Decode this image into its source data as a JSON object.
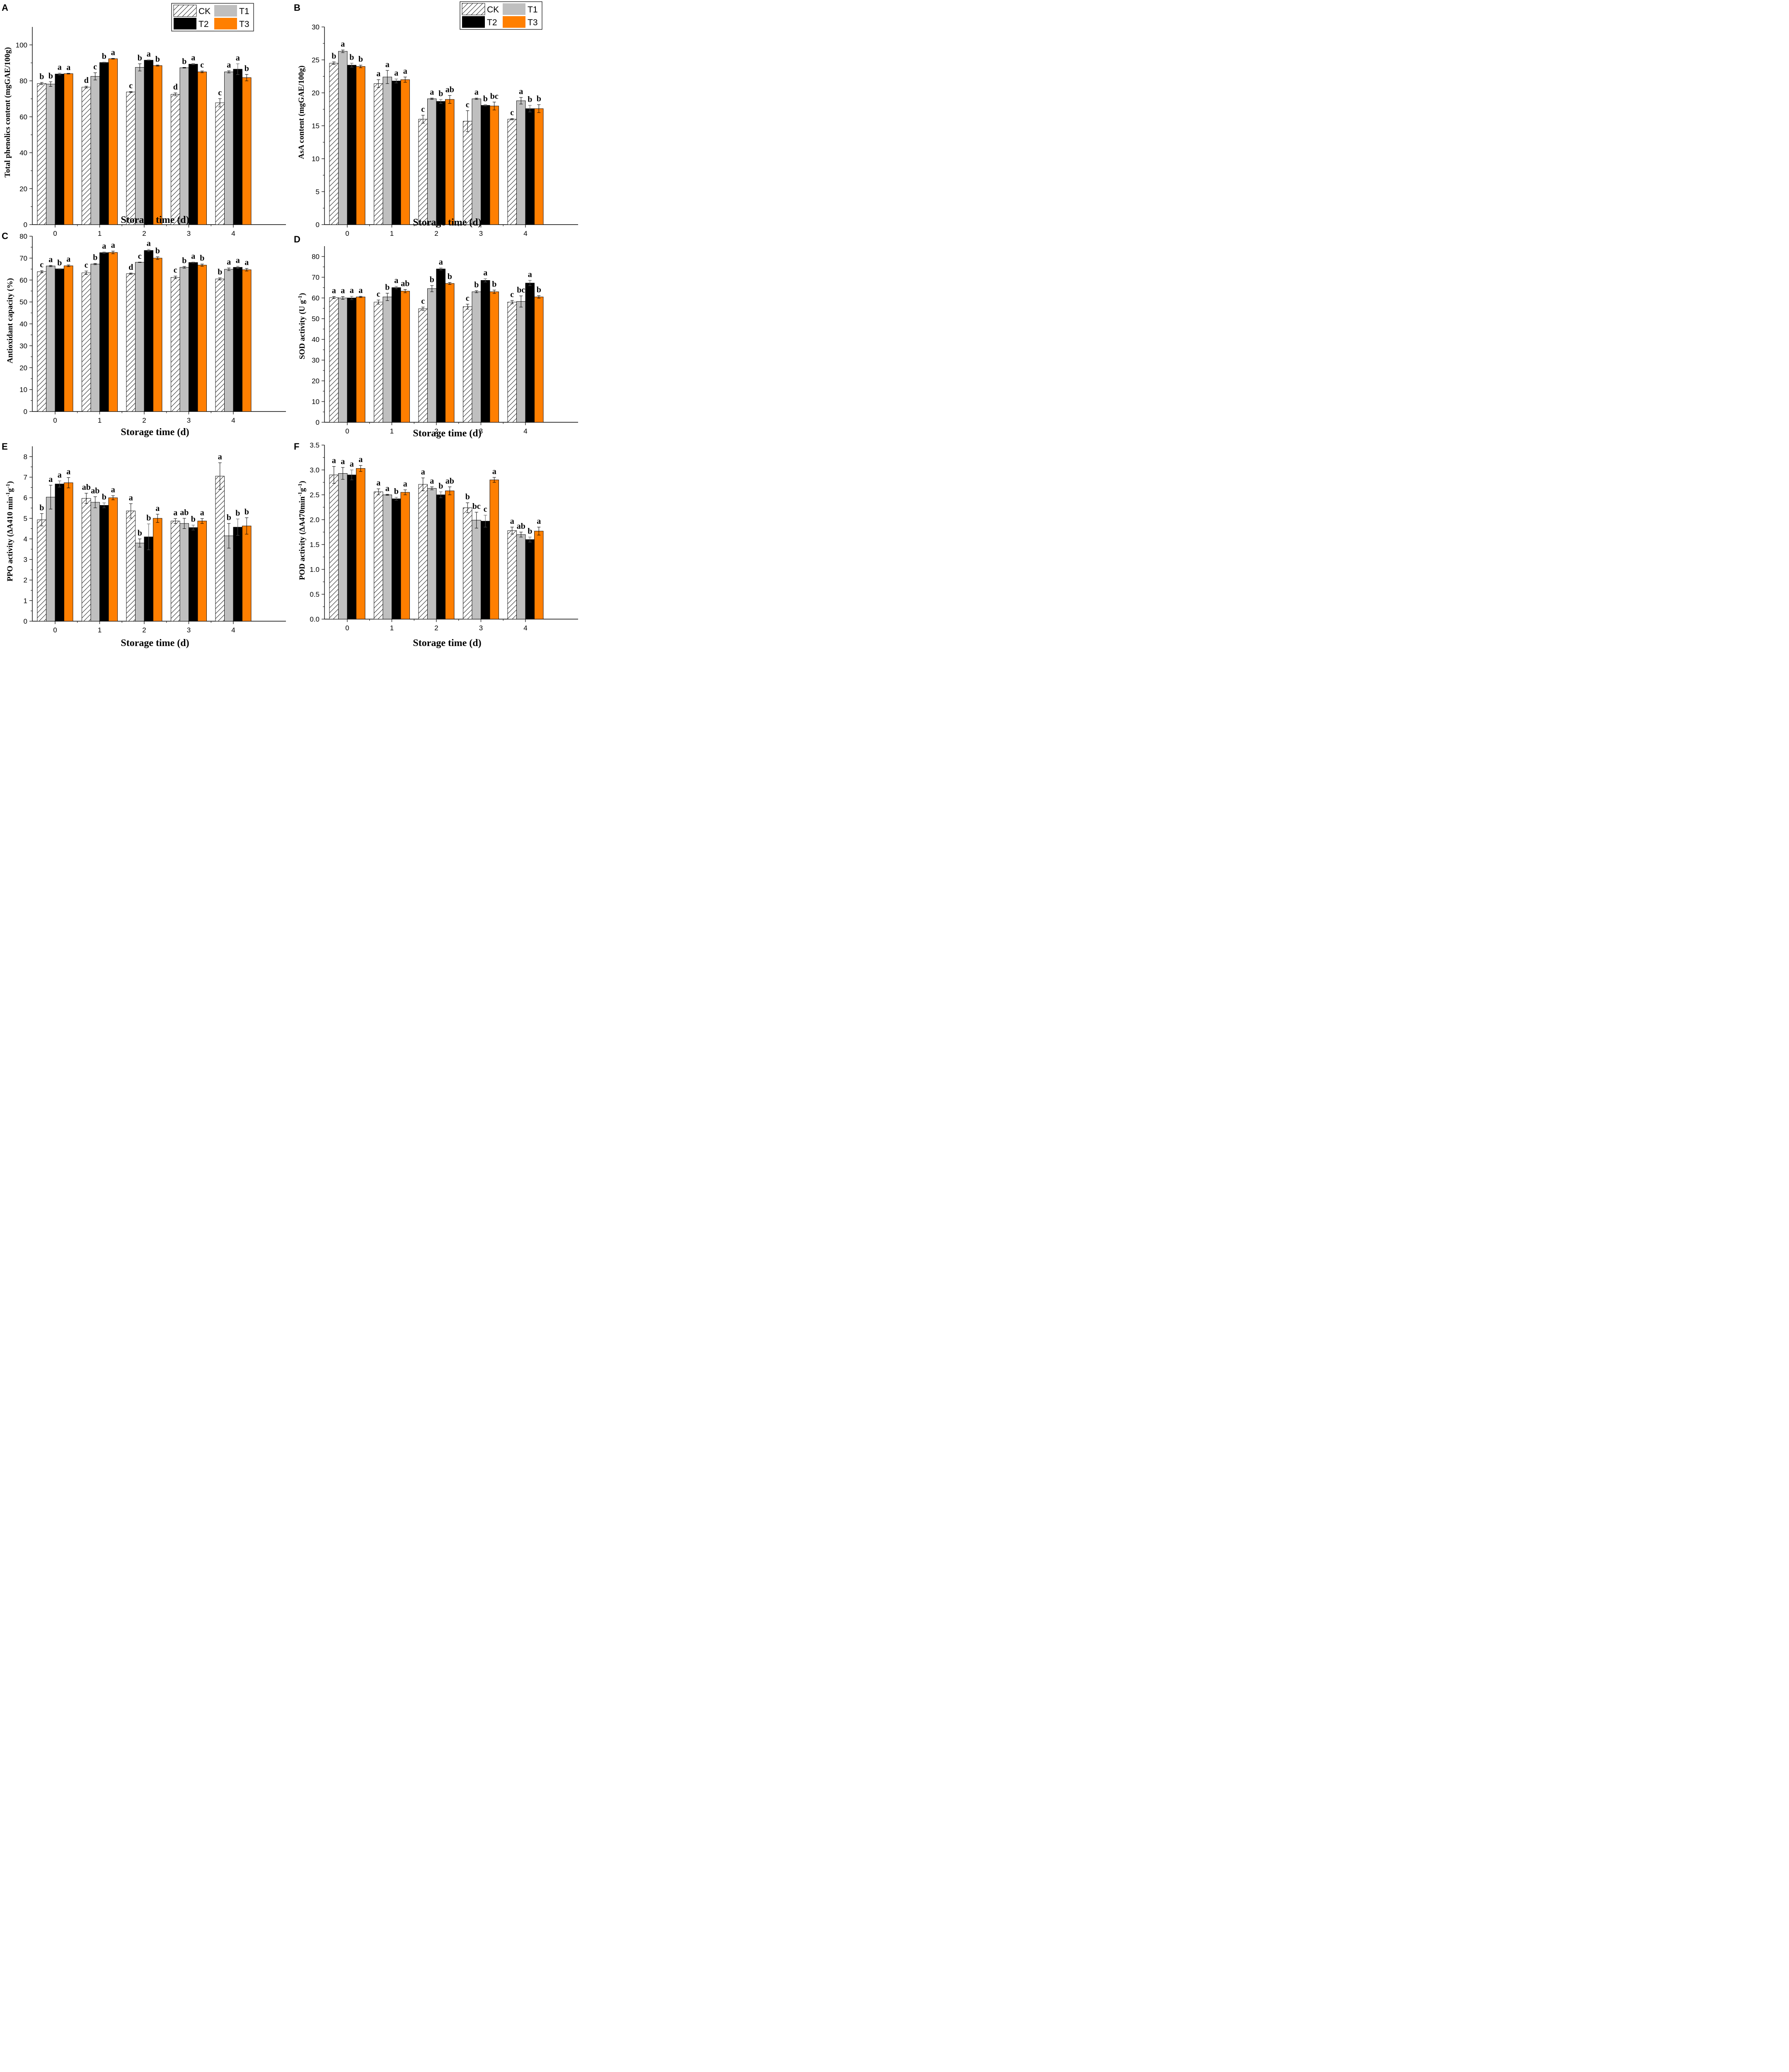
{
  "series_names": [
    "CK",
    "T1",
    "T2",
    "T3"
  ],
  "colors": {
    "CK": "#ffffff",
    "T1": "#bfbfbf",
    "T2": "#000000",
    "T3": "#ff7f00",
    "hatch": "#000000"
  },
  "legend": {
    "labels": [
      "CK",
      "T1",
      "T2",
      "T3"
    ]
  },
  "chart_data": [
    {
      "id": "A",
      "panel_label": "A",
      "type": "bar",
      "categories": [
        "0",
        "1",
        "2",
        "3",
        "4"
      ],
      "xlabel": "Storage time (d)",
      "ylabel": "Total phenolics content (mgGAE/100g)",
      "ylim": [
        0,
        110
      ],
      "yticks": [
        0,
        20,
        40,
        60,
        80,
        100
      ],
      "series": [
        {
          "name": "CK",
          "values": [
            78.5,
            76.5,
            73.8,
            72.5,
            67.8
          ],
          "errors": [
            0.6,
            0.5,
            0.2,
            0.8,
            2.3
          ],
          "letters": [
            "b",
            "d",
            "c",
            "d",
            "c"
          ]
        },
        {
          "name": "T1",
          "values": [
            78.2,
            82.5,
            87.5,
            87.3,
            85.0
          ],
          "errors": [
            1.3,
            2.0,
            2.0,
            0.2,
            0.6
          ],
          "letters": [
            "b",
            "c",
            "b",
            "b",
            "a"
          ]
        },
        {
          "name": "T2",
          "values": [
            83.8,
            90.2,
            91.5,
            89.3,
            86.5
          ],
          "errors": [
            0.5,
            0.2,
            0.2,
            0.3,
            3.0
          ],
          "letters": [
            "a",
            "b",
            "a",
            "a",
            "a"
          ]
        },
        {
          "name": "T3",
          "values": [
            84.0,
            92.3,
            88.5,
            85.0,
            81.8
          ],
          "errors": [
            0.2,
            0.2,
            0.3,
            0.5,
            1.8
          ],
          "letters": [
            "a",
            "a",
            "b",
            "c",
            "b"
          ]
        }
      ]
    },
    {
      "id": "B",
      "panel_label": "B",
      "type": "bar",
      "categories": [
        "0",
        "1",
        "2",
        "3",
        "4"
      ],
      "xlabel": "Storage time (d)",
      "ylabel": "AsA content (mgGAE/100g)",
      "ylim": [
        0,
        30
      ],
      "yticks": [
        0,
        5,
        10,
        15,
        20,
        25,
        30
      ],
      "series": [
        {
          "name": "CK",
          "values": [
            24.5,
            21.4,
            16.0,
            15.7,
            16.0
          ],
          "errors": [
            0.2,
            0.6,
            0.6,
            1.6,
            0.1
          ],
          "letters": [
            "b",
            "a",
            "c",
            "c",
            "c"
          ]
        },
        {
          "name": "T1",
          "values": [
            26.3,
            22.4,
            19.1,
            19.1,
            18.8
          ],
          "errors": [
            0.2,
            1.0,
            0.1,
            0.1,
            0.5
          ],
          "letters": [
            "a",
            "a",
            "a",
            "a",
            "a"
          ]
        },
        {
          "name": "T2",
          "values": [
            24.2,
            21.8,
            18.7,
            18.1,
            17.6
          ],
          "errors": [
            0.3,
            0.3,
            0.3,
            0.1,
            0.5
          ],
          "letters": [
            "b",
            "a",
            "b",
            "b",
            "b"
          ]
        },
        {
          "name": "T3",
          "values": [
            24.0,
            22.0,
            19.0,
            18.0,
            17.6
          ],
          "errors": [
            0.2,
            0.4,
            0.6,
            0.6,
            0.6
          ],
          "letters": [
            "b",
            "a",
            "ab",
            "bc",
            "b"
          ]
        }
      ]
    },
    {
      "id": "C",
      "panel_label": "C",
      "type": "bar",
      "categories": [
        "0",
        "1",
        "2",
        "3",
        "4"
      ],
      "xlabel": "Storage time (d)",
      "ylabel": "Antioxidant capacity (%)",
      "ylim": [
        0,
        80
      ],
      "yticks": [
        0,
        10,
        20,
        30,
        40,
        50,
        60,
        70,
        80
      ],
      "series": [
        {
          "name": "CK",
          "values": [
            63.8,
            63.3,
            62.9,
            61.2,
            60.5
          ],
          "errors": [
            0.5,
            0.8,
            0.3,
            0.6,
            0.5
          ],
          "letters": [
            "c",
            "c",
            "d",
            "c",
            "b"
          ]
        },
        {
          "name": "T1",
          "values": [
            66.4,
            67.3,
            68.1,
            65.8,
            64.9
          ],
          "errors": [
            0.3,
            0.3,
            0.1,
            0.4,
            0.6
          ],
          "letters": [
            "a",
            "b",
            "c",
            "b",
            "a"
          ]
        },
        {
          "name": "T2",
          "values": [
            65.1,
            72.5,
            73.5,
            68.0,
            65.8
          ],
          "errors": [
            0.1,
            0.3,
            0.5,
            0.2,
            0.5
          ],
          "letters": [
            "b",
            "a",
            "a",
            "a",
            "a"
          ]
        },
        {
          "name": "T3",
          "values": [
            66.5,
            72.6,
            70.0,
            66.8,
            64.7
          ],
          "errors": [
            0.4,
            0.6,
            0.6,
            0.5,
            0.6
          ],
          "letters": [
            "a",
            "a",
            "b",
            "b",
            "a"
          ]
        }
      ]
    },
    {
      "id": "D",
      "panel_label": "D",
      "type": "bar",
      "categories": [
        "0",
        "1",
        "2",
        "3",
        "4"
      ],
      "xlabel": "Storage time (d)",
      "ylabel": "SOD activity (U g-1)",
      "ylabel_main": "SOD activity (U g",
      "ylabel_sup": "-1",
      "ylabel_close": ")",
      "ylim": [
        0,
        85
      ],
      "yticks": [
        0,
        10,
        20,
        30,
        40,
        50,
        60,
        70,
        80
      ],
      "series": [
        {
          "name": "CK",
          "values": [
            60.2,
            58.0,
            54.8,
            55.8,
            58.0
          ],
          "errors": [
            0.5,
            1.0,
            0.8,
            1.2,
            0.8
          ],
          "letters": [
            "a",
            "c",
            "c",
            "c",
            "c"
          ]
        },
        {
          "name": "T1",
          "values": [
            60.0,
            60.5,
            64.5,
            63.0,
            58.3
          ],
          "errors": [
            0.7,
            1.8,
            1.5,
            0.5,
            2.7
          ],
          "letters": [
            "a",
            "b",
            "b",
            "b",
            "bc"
          ]
        },
        {
          "name": "T2",
          "values": [
            60.0,
            65.0,
            74.0,
            68.5,
            67.2
          ],
          "errors": [
            0.8,
            0.6,
            0.5,
            0.8,
            1.3
          ],
          "letters": [
            "a",
            "a",
            "a",
            "a",
            "a"
          ]
        },
        {
          "name": "T3",
          "values": [
            60.5,
            63.3,
            67.0,
            63.0,
            60.5
          ],
          "errors": [
            0.3,
            0.8,
            0.5,
            0.8,
            0.6
          ],
          "letters": [
            "a",
            "ab",
            "b",
            "b",
            "b"
          ]
        }
      ]
    },
    {
      "id": "E",
      "panel_label": "E",
      "type": "bar",
      "categories": [
        "0",
        "1",
        "2",
        "3",
        "4"
      ],
      "xlabel": "Storage time (d)",
      "ylabel": "PPO activity (ΔA410 min-1g-1)",
      "ylabel_main": "PPO activity (ΔA410 min",
      "ylabel_sup": "-1",
      "ylabel_mid": "g",
      "ylabel_sup2": "-1",
      "ylabel_close": ")",
      "ylim": [
        0,
        8.5
      ],
      "yticks": [
        0,
        1,
        2,
        3,
        4,
        5,
        6,
        7,
        8
      ],
      "series": [
        {
          "name": "CK",
          "values": [
            4.93,
            5.97,
            5.36,
            4.87,
            7.05
          ],
          "errors": [
            0.3,
            0.25,
            0.35,
            0.12,
            0.65
          ],
          "letters": [
            "b",
            "ab",
            "a",
            "a",
            "a"
          ]
        },
        {
          "name": "T1",
          "values": [
            6.03,
            5.78,
            3.8,
            4.75,
            4.15
          ],
          "errors": [
            0.58,
            0.27,
            0.2,
            0.25,
            0.6
          ],
          "letters": [
            "a",
            "ab",
            "b",
            "ab",
            "b"
          ]
        },
        {
          "name": "T2",
          "values": [
            6.67,
            5.63,
            4.1,
            4.55,
            4.57
          ],
          "errors": [
            0.15,
            0.12,
            0.63,
            0.12,
            0.4
          ],
          "letters": [
            "a",
            "b",
            "b",
            "b",
            "b"
          ]
        },
        {
          "name": "T3",
          "values": [
            6.73,
            6.0,
            5.0,
            4.87,
            4.63
          ],
          "errors": [
            0.25,
            0.1,
            0.2,
            0.12,
            0.4
          ],
          "letters": [
            "a",
            "a",
            "a",
            "a",
            "b"
          ]
        }
      ]
    },
    {
      "id": "F",
      "panel_label": "F",
      "type": "bar",
      "categories": [
        "0",
        "1",
        "2",
        "3",
        "4"
      ],
      "xlabel": "Storage time (d)",
      "ylabel": "POD activity (ΔA470min-1g-1)",
      "ylabel_main": "POD activity (ΔA470min",
      "ylabel_sup": "-1",
      "ylabel_mid": "g",
      "ylabel_sup2": "-1",
      "ylabel_close": ")",
      "ylim": [
        0,
        3.5
      ],
      "yticks": [
        "0.0",
        "0.5",
        "1.0",
        "1.5",
        "2.0",
        "2.5",
        "3.0",
        "3.5"
      ],
      "series": [
        {
          "name": "CK",
          "values": [
            2.9,
            2.56,
            2.71,
            2.24,
            1.78
          ],
          "errors": [
            0.17,
            0.06,
            0.13,
            0.1,
            0.07
          ],
          "letters": [
            "a",
            "a",
            "a",
            "b",
            "a"
          ]
        },
        {
          "name": "T1",
          "values": [
            2.93,
            2.5,
            2.63,
            1.99,
            1.7
          ],
          "errors": [
            0.12,
            0.01,
            0.03,
            0.16,
            0.05
          ],
          "letters": [
            "a",
            "a",
            "a",
            "bc",
            "ab"
          ]
        },
        {
          "name": "T2",
          "values": [
            2.9,
            2.42,
            2.5,
            1.97,
            1.6
          ],
          "errors": [
            0.1,
            0.03,
            0.06,
            0.12,
            0.05
          ],
          "letters": [
            "a",
            "b",
            "b",
            "c",
            "b"
          ]
        },
        {
          "name": "T3",
          "values": [
            3.03,
            2.55,
            2.58,
            2.8,
            1.77
          ],
          "errors": [
            0.06,
            0.05,
            0.08,
            0.05,
            0.08
          ],
          "letters": [
            "a",
            "a",
            "ab",
            "a",
            "a"
          ]
        }
      ]
    }
  ]
}
